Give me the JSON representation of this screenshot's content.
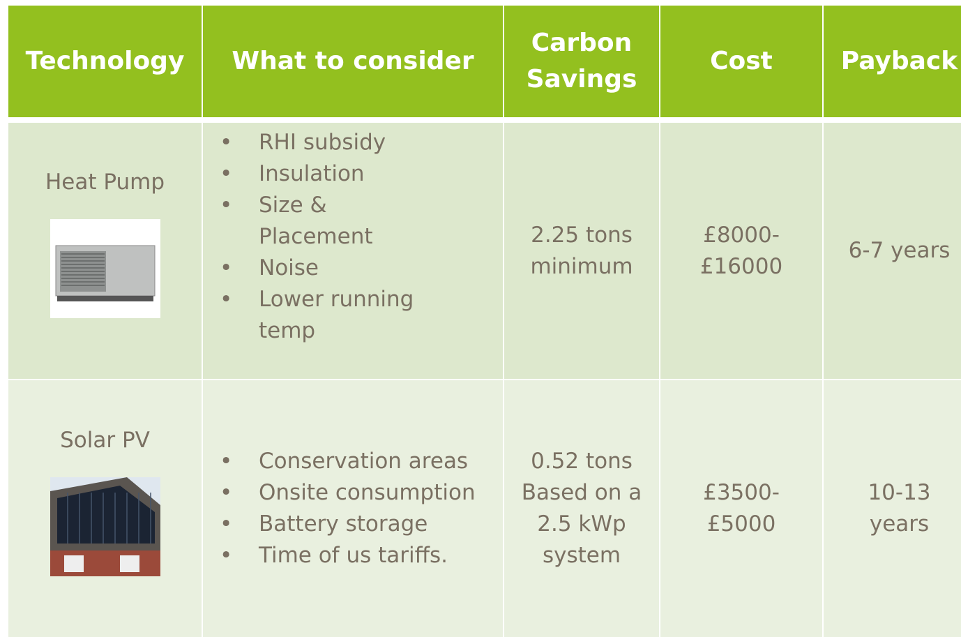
{
  "table": {
    "header": [
      "Technology",
      "What to consider",
      "Carbon Savings",
      "Cost",
      "Payback"
    ],
    "rows": [
      {
        "technology": "Heat Pump",
        "considerations": [
          "RHI subsidy",
          "Insulation",
          "Size & Placement",
          "Noise",
          "Lower running temp"
        ],
        "carbon_savings": [
          "2.25 tons",
          "minimum"
        ],
        "cost": [
          "£8000-",
          "£16000"
        ],
        "payback": [
          "6-7 years"
        ]
      },
      {
        "technology": "Solar PV",
        "considerations": [
          "Conservation areas",
          "Onsite consumption",
          "Battery storage",
          "Time of us tariffs."
        ],
        "carbon_savings": [
          "0.52 tons",
          "Based on a",
          "2.5 kWp",
          "system"
        ],
        "cost": [
          "£3500-",
          "£5000"
        ],
        "payback": [
          "10-13",
          "years"
        ]
      }
    ]
  }
}
